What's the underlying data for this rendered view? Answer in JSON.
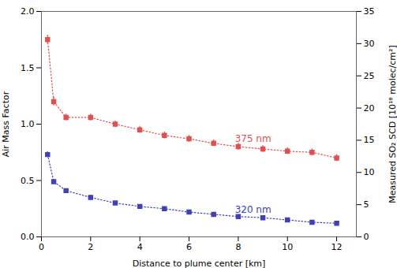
{
  "chart_data": {
    "type": "line",
    "xlabel": "Distance to plume center [km]",
    "ylabel": "Air Mass Factor",
    "y2label": "Measured SO₂ SCD [10¹⁸ molec/cm²]",
    "x": [
      0.25,
      0.5,
      1.0,
      2.0,
      3.0,
      4.0,
      5.0,
      6.0,
      7.0,
      8.0,
      9.0,
      10.0,
      11.0,
      12.0
    ],
    "series": [
      {
        "name": "375 nm",
        "color": "#E05050",
        "marker": "square",
        "line_style": "dotted",
        "values": [
          1.75,
          1.2,
          1.06,
          1.06,
          1.0,
          0.95,
          0.9,
          0.87,
          0.83,
          0.8,
          0.78,
          0.76,
          0.75,
          0.7
        ],
        "errors": [
          0.04,
          0.04,
          0.03,
          0.03,
          0.03,
          0.03,
          0.03,
          0.03,
          0.03,
          0.03,
          0.03,
          0.03,
          0.03,
          0.03
        ]
      },
      {
        "name": "320 nm",
        "color": "#4040BB",
        "marker": "square",
        "line_style": "dotted",
        "values": [
          0.73,
          0.49,
          0.41,
          0.35,
          0.3,
          0.27,
          0.25,
          0.22,
          0.2,
          0.18,
          0.17,
          0.15,
          0.13,
          0.12
        ],
        "errors": [
          0.025,
          0.02,
          0.015,
          0.015,
          0.013,
          0.012,
          0.01,
          0.01,
          0.01,
          0.01,
          0.008,
          0.008,
          0.008,
          0.008
        ]
      }
    ],
    "annotations": [
      {
        "text": "375 nm",
        "x": 7.8,
        "y": 0.87,
        "color": "#E05050"
      },
      {
        "text": "320 nm",
        "x": 7.8,
        "y": 0.24,
        "color": "#4040BB"
      }
    ],
    "xlim": [
      0,
      12.8
    ],
    "xticks": [
      0,
      2,
      4,
      6,
      8,
      10,
      12
    ],
    "ylim": [
      0.0,
      2.0
    ],
    "yticks": [
      {
        "value": 0,
        "label": "0.0"
      },
      0.5,
      {
        "value": 1,
        "label": "1.0"
      },
      1.5,
      {
        "value": 2,
        "label": "2.0"
      }
    ],
    "y2lim": [
      0,
      35
    ],
    "y2ticks": [
      0,
      5,
      10,
      15,
      20,
      25,
      30,
      35
    ],
    "grid": false
  }
}
